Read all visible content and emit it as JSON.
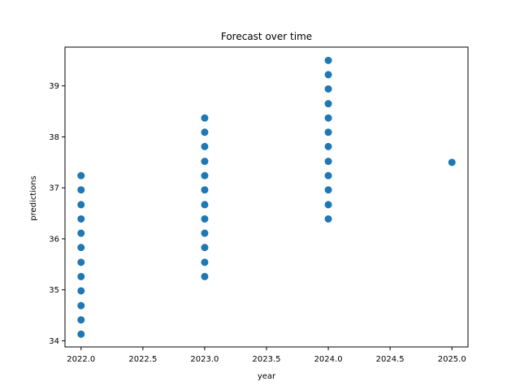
{
  "chart_data": {
    "type": "scatter",
    "title": "Forecast over time",
    "xlabel": "year",
    "ylabel": "predictions",
    "xlim": [
      2021.87,
      2025.13
    ],
    "ylim": [
      33.88,
      39.76
    ],
    "xticks": [
      "2022.0",
      "2022.5",
      "2023.0",
      "2023.5",
      "2024.0",
      "2024.5",
      "2025.0"
    ],
    "yticks": [
      "34",
      "35",
      "36",
      "37",
      "38",
      "39"
    ],
    "grid": false,
    "marker_color": "#1f77b4",
    "points": [
      {
        "x": 2022.0,
        "y": 34.13
      },
      {
        "x": 2022.0,
        "y": 34.41
      },
      {
        "x": 2022.0,
        "y": 34.69
      },
      {
        "x": 2022.0,
        "y": 34.98
      },
      {
        "x": 2022.0,
        "y": 35.26
      },
      {
        "x": 2022.0,
        "y": 35.54
      },
      {
        "x": 2022.0,
        "y": 35.83
      },
      {
        "x": 2022.0,
        "y": 36.11
      },
      {
        "x": 2022.0,
        "y": 36.39
      },
      {
        "x": 2022.0,
        "y": 36.67
      },
      {
        "x": 2022.0,
        "y": 36.96
      },
      {
        "x": 2022.0,
        "y": 37.24
      },
      {
        "x": 2023.0,
        "y": 35.26
      },
      {
        "x": 2023.0,
        "y": 35.54
      },
      {
        "x": 2023.0,
        "y": 35.83
      },
      {
        "x": 2023.0,
        "y": 36.11
      },
      {
        "x": 2023.0,
        "y": 36.39
      },
      {
        "x": 2023.0,
        "y": 36.67
      },
      {
        "x": 2023.0,
        "y": 36.96
      },
      {
        "x": 2023.0,
        "y": 37.24
      },
      {
        "x": 2023.0,
        "y": 37.52
      },
      {
        "x": 2023.0,
        "y": 37.81
      },
      {
        "x": 2023.0,
        "y": 38.09
      },
      {
        "x": 2023.0,
        "y": 38.37
      },
      {
        "x": 2024.0,
        "y": 36.39
      },
      {
        "x": 2024.0,
        "y": 36.67
      },
      {
        "x": 2024.0,
        "y": 36.96
      },
      {
        "x": 2024.0,
        "y": 37.24
      },
      {
        "x": 2024.0,
        "y": 37.52
      },
      {
        "x": 2024.0,
        "y": 37.81
      },
      {
        "x": 2024.0,
        "y": 38.09
      },
      {
        "x": 2024.0,
        "y": 38.37
      },
      {
        "x": 2024.0,
        "y": 38.65
      },
      {
        "x": 2024.0,
        "y": 38.94
      },
      {
        "x": 2024.0,
        "y": 39.22
      },
      {
        "x": 2024.0,
        "y": 39.5
      },
      {
        "x": 2025.0,
        "y": 37.5
      }
    ]
  }
}
